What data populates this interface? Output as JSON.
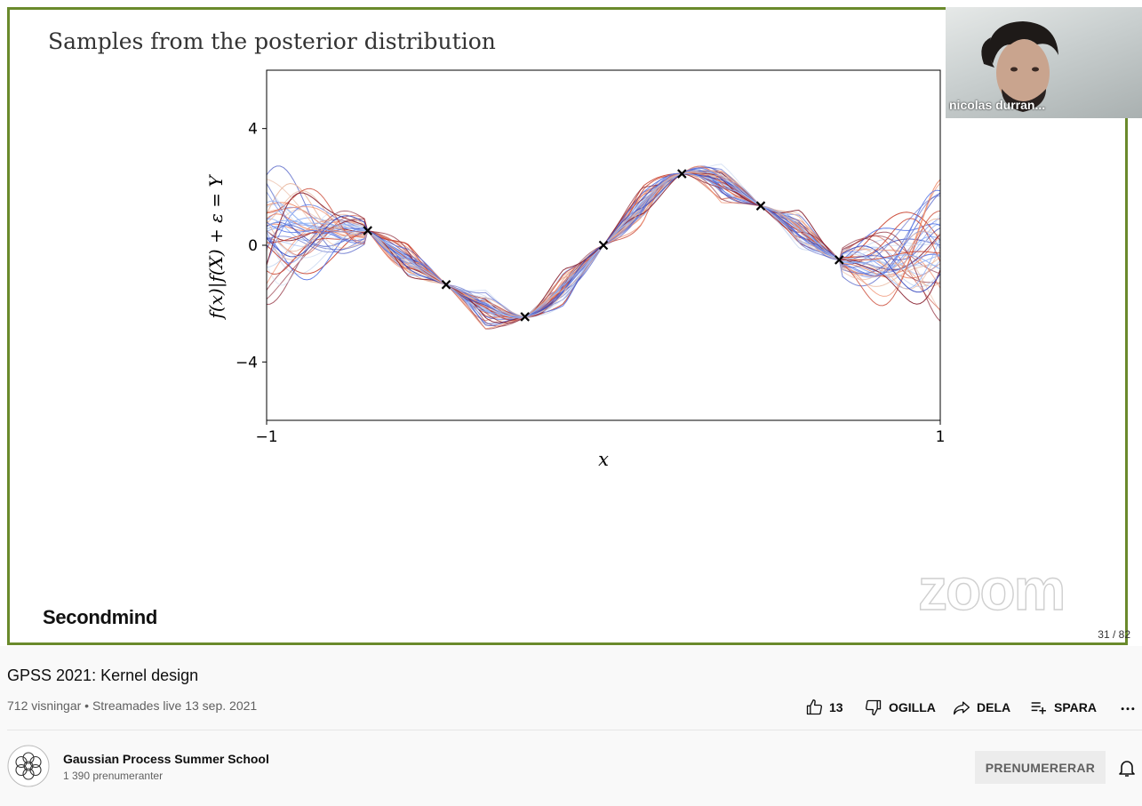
{
  "slide": {
    "title": "Samples from the posterior distribution",
    "brand": "Secondmind",
    "watermark": "zoom",
    "page_counter": "31 / 82"
  },
  "webcam": {
    "name": "nicolas durran..."
  },
  "chart_data": {
    "type": "line",
    "title": "Samples from the posterior distribution",
    "xlabel": "x",
    "ylabel": "f(x)|f(X) + ε = Y",
    "xlim": [
      -1,
      1
    ],
    "ylim": [
      -6,
      6
    ],
    "xticks": [
      -1,
      1
    ],
    "xtick_labels": [
      "−1",
      "1"
    ],
    "yticks": [
      -4,
      0,
      4
    ],
    "ytick_labels": [
      "−4",
      "0",
      "4"
    ],
    "grid": false,
    "observations": {
      "x": [
        -0.7,
        -0.467,
        -0.233,
        0.0,
        0.233,
        0.467,
        0.7
      ],
      "y": [
        0.5,
        -1.35,
        -2.45,
        0.0,
        2.45,
        1.35,
        -0.5
      ]
    },
    "sample_count": 45,
    "colors": [
      "#3b4cc0",
      "#5a78e6",
      "#8caef5",
      "#c6d6f0",
      "#e9b8a0",
      "#f08a68",
      "#c9422e",
      "#8a2433"
    ]
  },
  "video": {
    "title": "GPSS 2021: Kernel design",
    "meta": "712 visningar • Streamades live 13 sep. 2021",
    "like_count": "13",
    "dislike_label": "OGILLA",
    "share_label": "DELA",
    "save_label": "SPARA",
    "more_label": "..."
  },
  "channel": {
    "name": "Gaussian Process Summer School",
    "subscribers": "1 390 prenumeranter",
    "subscribe_label": "PRENUMERERAR"
  },
  "icons": {
    "like": "thumbs-up-icon",
    "dislike": "thumbs-down-icon",
    "share": "share-icon",
    "save": "playlist-add-icon",
    "more": "more-horizontal-icon",
    "bell": "bell-icon"
  }
}
